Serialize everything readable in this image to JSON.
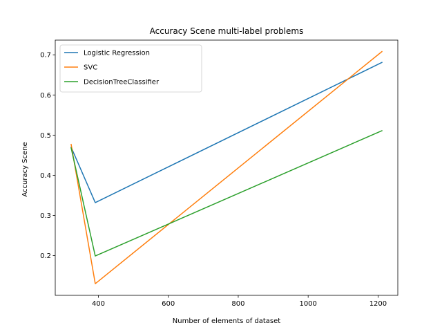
{
  "chart_data": {
    "type": "line",
    "title": "Accuracy Scene multi-label problems",
    "xlabel": "Number of elements of dataset",
    "ylabel": "Accuracy Scene",
    "x": [
      322,
      391,
      1211
    ],
    "xlim": [
      276.55,
      1256.45
    ],
    "ylim": [
      0.101,
      0.7366
    ],
    "xticks": [
      400,
      600,
      800,
      1000,
      1200
    ],
    "yticks": [
      0.2,
      0.3,
      0.4,
      0.5,
      0.6,
      0.7
    ],
    "ytick_labels": [
      "0.2",
      "0.3",
      "0.4",
      "0.5",
      "0.6",
      "0.7"
    ],
    "grid": false,
    "legend_position": "top-left",
    "series": [
      {
        "name": "Logistic Regression",
        "color": "#1f77b4",
        "values": [
          0.47,
          0.332,
          0.681
        ]
      },
      {
        "name": "SVC",
        "color": "#ff7f0e",
        "values": [
          0.477,
          0.13,
          0.708
        ]
      },
      {
        "name": "DecisionTreeClassifier",
        "color": "#2ca02c",
        "values": [
          0.468,
          0.199,
          0.511
        ]
      }
    ]
  }
}
